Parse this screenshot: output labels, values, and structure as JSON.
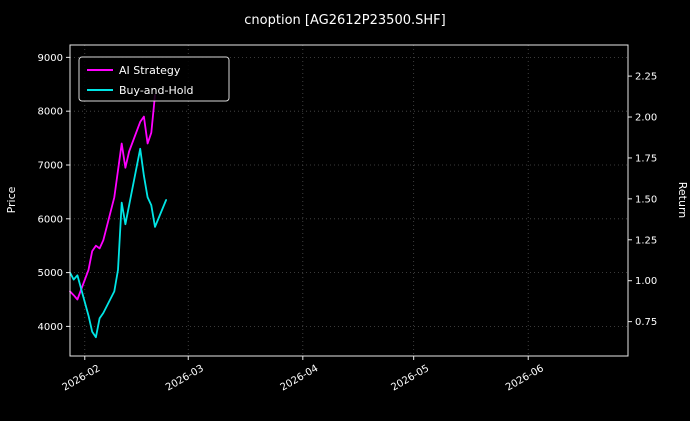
{
  "title": "cnoption [AG2612P23500.SHF]",
  "chart_data": {
    "type": "line",
    "title": "cnoption [AG2612P23500.SHF]",
    "xlabel": "",
    "ylabel_left": "Price",
    "ylabel_right": "Return",
    "background_color": "#000000",
    "text_color": "#ffffff",
    "grid": true,
    "grid_color": "#4d4d4d",
    "spine_color": "#e8e8e8",
    "legend_position": "upper-left",
    "x_range": [
      "2026-01-28",
      "2026-06-28"
    ],
    "x_ticks": [
      "2026-02",
      "2026-03",
      "2026-04",
      "2026-05",
      "2026-06"
    ],
    "ylim_left": [
      3450,
      9230
    ],
    "yticks_left": [
      4000,
      5000,
      6000,
      7000,
      8000,
      9000
    ],
    "ylim_right": [
      0.54,
      2.44
    ],
    "yticks_right": [
      0.75,
      1.0,
      1.25,
      1.5,
      1.75,
      2.0,
      2.25
    ],
    "series": [
      {
        "name": "AI Strategy",
        "color": "#ff00ff",
        "axis": "left",
        "x": [
          "2026-01-28",
          "2026-01-29",
          "2026-01-30",
          "2026-02-02",
          "2026-02-03",
          "2026-02-04",
          "2026-02-05",
          "2026-02-06",
          "2026-02-09",
          "2026-02-10",
          "2026-02-11",
          "2026-02-12",
          "2026-02-13",
          "2026-02-16",
          "2026-02-17",
          "2026-02-18",
          "2026-02-19",
          "2026-02-20"
        ],
        "values": [
          4650,
          4580,
          4500,
          5050,
          5400,
          5500,
          5450,
          5600,
          6400,
          6900,
          7400,
          6950,
          7250,
          7800,
          7900,
          7400,
          7600,
          8300
        ]
      },
      {
        "name": "Buy-and-Hold",
        "color": "#00e5e5",
        "axis": "left",
        "x": [
          "2026-01-28",
          "2026-01-29",
          "2026-01-30",
          "2026-02-02",
          "2026-02-03",
          "2026-02-04",
          "2026-02-05",
          "2026-02-06",
          "2026-02-09",
          "2026-02-10",
          "2026-02-11",
          "2026-02-12",
          "2026-02-13",
          "2026-02-16",
          "2026-02-17",
          "2026-02-18",
          "2026-02-19",
          "2026-02-20",
          "2026-02-23"
        ],
        "values": [
          5000,
          4870,
          4950,
          4200,
          3900,
          3800,
          4150,
          4250,
          4650,
          5050,
          6300,
          5900,
          6250,
          7300,
          6800,
          6400,
          6250,
          5850,
          6350
        ]
      }
    ]
  }
}
